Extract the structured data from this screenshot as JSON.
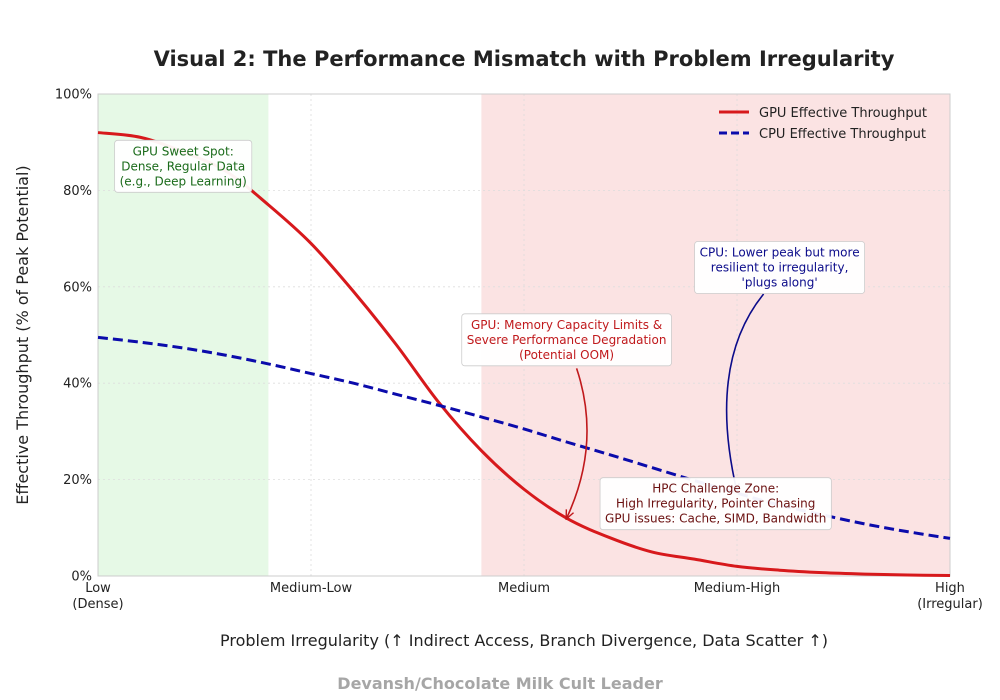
{
  "chart_data": {
    "type": "line",
    "title": "Visual 2: The Performance Mismatch with Problem Irregularity",
    "xlabel": "Problem Irregularity (↑ Indirect Access, Branch Divergence, Data Scatter ↑)",
    "ylabel": "Effective Throughput (% of Peak Potential)",
    "credit": "Devansh/Chocolate Milk Cult Leader",
    "xlim": [
      0,
      4
    ],
    "ylim": [
      0,
      100
    ],
    "x_ticks": [
      {
        "value": 0,
        "lines": [
          "Low",
          "(Dense)"
        ]
      },
      {
        "value": 1,
        "lines": [
          "Medium-Low"
        ]
      },
      {
        "value": 2,
        "lines": [
          "Medium"
        ]
      },
      {
        "value": 3,
        "lines": [
          "Medium-High"
        ]
      },
      {
        "value": 4,
        "lines": [
          "High",
          "(Irregular)"
        ]
      }
    ],
    "y_ticks": [
      {
        "value": 0,
        "label": "0%"
      },
      {
        "value": 20,
        "label": "20%"
      },
      {
        "value": 40,
        "label": "40%"
      },
      {
        "value": 60,
        "label": "60%"
      },
      {
        "value": 80,
        "label": "80%"
      },
      {
        "value": 100,
        "label": "100%"
      }
    ],
    "grid": true,
    "legend_position": "top-right",
    "regions": [
      {
        "name": "gpu-sweet-spot-region",
        "x_start": 0,
        "x_end": 0.8,
        "color": "#e6f9e6"
      },
      {
        "name": "hpc-challenge-region",
        "x_start": 1.8,
        "x_end": 4,
        "color": "#fbe3e3"
      }
    ],
    "series": [
      {
        "name": "GPU Effective Throughput",
        "color": "#d7191c",
        "style": "solid",
        "x": [
          0,
          0.2,
          0.4,
          0.6,
          0.8,
          1.0,
          1.2,
          1.4,
          1.6,
          1.8,
          2.0,
          2.2,
          2.4,
          2.6,
          2.8,
          3.0,
          3.2,
          3.4,
          3.6,
          3.8,
          4.0
        ],
        "y": [
          92,
          91,
          88,
          84,
          77,
          69,
          59,
          48,
          36,
          26,
          18,
          12,
          8,
          5,
          3.5,
          2,
          1.2,
          0.7,
          0.4,
          0.2,
          0.1
        ]
      },
      {
        "name": "CPU Effective Throughput",
        "color": "#0b0bab",
        "style": "dashed",
        "x": [
          0,
          0.2,
          0.4,
          0.6,
          0.8,
          1.0,
          1.2,
          1.4,
          1.6,
          1.8,
          2.0,
          2.2,
          2.4,
          2.6,
          2.8,
          3.0,
          3.2,
          3.4,
          3.6,
          3.8,
          4.0
        ],
        "y": [
          49.5,
          48.5,
          47.3,
          45.8,
          44,
          42,
          40,
          37.7,
          35.4,
          33,
          30.5,
          27.8,
          25.2,
          22.5,
          19.8,
          17.2,
          14.7,
          12.7,
          10.8,
          9.2,
          7.8
        ]
      }
    ],
    "annotations": [
      {
        "name": "gpu-sweet-spot-annotation",
        "lines": [
          "GPU Sweet Spot:",
          "Dense, Regular Data",
          "(e.g., Deep Learning)"
        ],
        "color": "#1a6b1a",
        "at": [
          0.4,
          85
        ]
      },
      {
        "name": "gpu-oom-annotation",
        "lines": [
          "GPU: Memory Capacity Limits &",
          "Severe Performance Degradation",
          "(Potential OOM)"
        ],
        "color": "#c0191c",
        "at": [
          2.2,
          49
        ],
        "arrow_to": [
          2.2,
          12
        ]
      },
      {
        "name": "cpu-resilient-annotation",
        "lines": [
          "CPU: Lower peak but more",
          "resilient to irregularity,",
          "'plugs along'"
        ],
        "color": "#0b0b8a",
        "at": [
          3.2,
          64
        ],
        "arrow_to": [
          3.0,
          17.5
        ]
      },
      {
        "name": "hpc-challenge-annotation",
        "lines": [
          "HPC Challenge Zone:",
          "High Irregularity, Pointer Chasing",
          "GPU issues: Cache, SIMD, Bandwidth"
        ],
        "color": "#6b1010",
        "at": [
          2.9,
          15
        ]
      }
    ]
  }
}
